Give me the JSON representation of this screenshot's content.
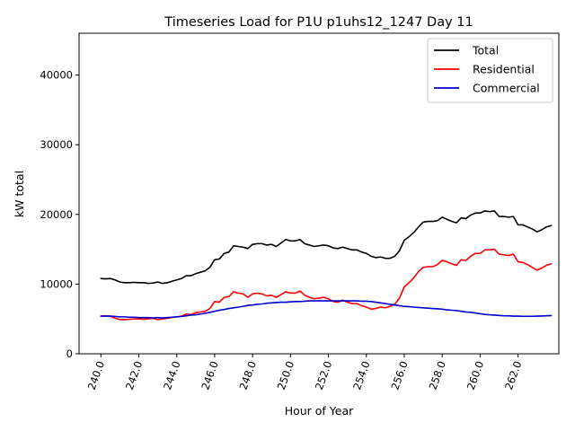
{
  "chart_data": {
    "type": "line",
    "title": "Timeseries Load for P1U p1uhs12_1247  Day 11",
    "xlabel": "Hour of Year",
    "ylabel": "kW total",
    "xlim": [
      238.85,
      264.15
    ],
    "ylim": [
      0,
      46000
    ],
    "grid": false,
    "legend_position": "top-right",
    "x_ticks": [
      240,
      242,
      244,
      246,
      248,
      250,
      252,
      254,
      256,
      258,
      260,
      262
    ],
    "x_tick_labels": [
      "240.0",
      "242.0",
      "244.0",
      "246.0",
      "248.0",
      "250.0",
      "252.0",
      "254.0",
      "256.0",
      "258.0",
      "260.0",
      "262.0"
    ],
    "y_ticks": [
      0,
      10000,
      20000,
      30000,
      40000
    ],
    "y_tick_labels": [
      "0",
      "10000",
      "20000",
      "30000",
      "40000"
    ],
    "x": [
      240.0,
      240.25,
      240.5,
      240.75,
      241.0,
      241.25,
      241.5,
      241.75,
      242.0,
      242.25,
      242.5,
      242.75,
      243.0,
      243.25,
      243.5,
      243.75,
      244.0,
      244.25,
      244.5,
      244.75,
      245.0,
      245.25,
      245.5,
      245.75,
      246.0,
      246.25,
      246.5,
      246.75,
      247.0,
      247.25,
      247.5,
      247.75,
      248.0,
      248.25,
      248.5,
      248.75,
      249.0,
      249.25,
      249.5,
      249.75,
      250.0,
      250.25,
      250.5,
      250.75,
      251.0,
      251.25,
      251.5,
      251.75,
      252.0,
      252.25,
      252.5,
      252.75,
      253.0,
      253.25,
      253.5,
      253.75,
      254.0,
      254.25,
      254.5,
      254.75,
      255.0,
      255.25,
      255.5,
      255.75,
      256.0,
      256.25,
      256.5,
      256.75,
      257.0,
      257.25,
      257.5,
      257.75,
      258.0,
      258.25,
      258.5,
      258.75,
      259.0,
      259.25,
      259.5,
      259.75,
      260.0,
      260.25,
      260.5,
      260.75,
      261.0,
      261.25,
      261.5,
      261.75,
      262.0,
      262.25,
      262.5,
      262.75,
      263.0,
      263.25,
      263.5,
      263.75
    ],
    "series": [
      {
        "name": "Total",
        "color": "#000000",
        "values": [
          10800,
          10750,
          10800,
          10600,
          10300,
          10200,
          10200,
          10250,
          10200,
          10200,
          10100,
          10150,
          10300,
          10100,
          10200,
          10400,
          10600,
          10800,
          11200,
          11200,
          11500,
          11700,
          11900,
          12400,
          13500,
          13600,
          14400,
          14600,
          15500,
          15400,
          15300,
          15100,
          15700,
          15800,
          15800,
          15600,
          15700,
          15400,
          15900,
          16400,
          16200,
          16200,
          16400,
          15800,
          15600,
          15400,
          15500,
          15600,
          15500,
          15200,
          15100,
          15300,
          15100,
          14900,
          14900,
          14600,
          14400,
          14000,
          13800,
          13900,
          13700,
          13700,
          14000,
          14800,
          16300,
          16800,
          17400,
          18200,
          18900,
          19000,
          19000,
          19100,
          19600,
          19300,
          19000,
          18800,
          19500,
          19400,
          19900,
          20200,
          20200,
          20500,
          20400,
          20500,
          19700,
          19700,
          19600,
          19700,
          18500,
          18500,
          18200,
          17900,
          17500,
          17800,
          18200,
          18400
        ]
      },
      {
        "name": "Residential",
        "color": "#ff0000",
        "values": [
          5400,
          5450,
          5400,
          5100,
          4900,
          4900,
          4950,
          5000,
          5000,
          4950,
          5000,
          5100,
          4900,
          5000,
          5100,
          5200,
          5300,
          5400,
          5700,
          5600,
          5900,
          6000,
          6100,
          6500,
          7500,
          7400,
          8100,
          8200,
          8900,
          8700,
          8600,
          8100,
          8600,
          8700,
          8600,
          8300,
          8400,
          8100,
          8500,
          8900,
          8700,
          8700,
          9000,
          8400,
          8100,
          7900,
          8000,
          8100,
          7900,
          7500,
          7400,
          7700,
          7400,
          7200,
          7200,
          6900,
          6700,
          6400,
          6500,
          6700,
          6600,
          6800,
          7100,
          8000,
          9600,
          10200,
          10900,
          11800,
          12400,
          12500,
          12500,
          12800,
          13400,
          13200,
          12900,
          12700,
          13500,
          13400,
          14000,
          14400,
          14400,
          14900,
          14900,
          15000,
          14300,
          14200,
          14100,
          14300,
          13200,
          13100,
          12800,
          12400,
          12000,
          12300,
          12700,
          12900
        ]
      },
      {
        "name": "Commercial",
        "color": "#0000cc",
        "values": [
          5400,
          5400,
          5400,
          5350,
          5300,
          5300,
          5250,
          5250,
          5200,
          5200,
          5200,
          5150,
          5200,
          5150,
          5200,
          5250,
          5300,
          5350,
          5450,
          5550,
          5600,
          5700,
          5800,
          5950,
          6100,
          6250,
          6350,
          6500,
          6600,
          6700,
          6800,
          6950,
          7000,
          7100,
          7150,
          7250,
          7300,
          7350,
          7400,
          7400,
          7450,
          7500,
          7500,
          7550,
          7600,
          7600,
          7600,
          7600,
          7600,
          7600,
          7600,
          7600,
          7600,
          7600,
          7600,
          7550,
          7550,
          7500,
          7400,
          7300,
          7200,
          7100,
          7000,
          6900,
          6800,
          6750,
          6700,
          6650,
          6600,
          6550,
          6500,
          6450,
          6400,
          6300,
          6250,
          6200,
          6100,
          6000,
          5950,
          5850,
          5750,
          5650,
          5600,
          5550,
          5500,
          5450,
          5450,
          5400,
          5400,
          5380,
          5380,
          5380,
          5400,
          5420,
          5450,
          5480
        ]
      }
    ]
  }
}
